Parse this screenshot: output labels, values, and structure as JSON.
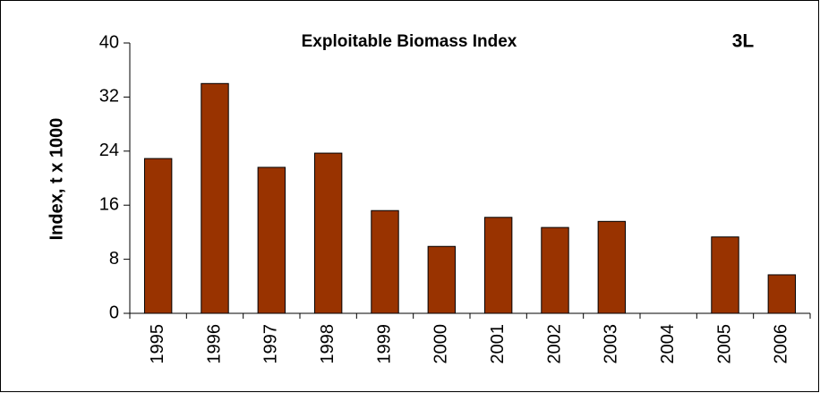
{
  "chart_data": {
    "type": "bar",
    "title": "Exploitable Biomass Index",
    "annotation": "3L",
    "y_label": "Index, t x 1000",
    "categories": [
      "1995",
      "1996",
      "1997",
      "1998",
      "1999",
      "2000",
      "2001",
      "2002",
      "2003",
      "2004",
      "2005",
      "2006"
    ],
    "values": [
      22.9,
      34.0,
      21.6,
      23.7,
      15.2,
      9.9,
      14.2,
      12.7,
      13.6,
      null,
      11.3,
      5.7
    ],
    "color": "#993300",
    "ylim": [
      0,
      40
    ],
    "yticks": [
      0,
      8,
      16,
      24,
      32,
      40
    ],
    "grid": false
  }
}
